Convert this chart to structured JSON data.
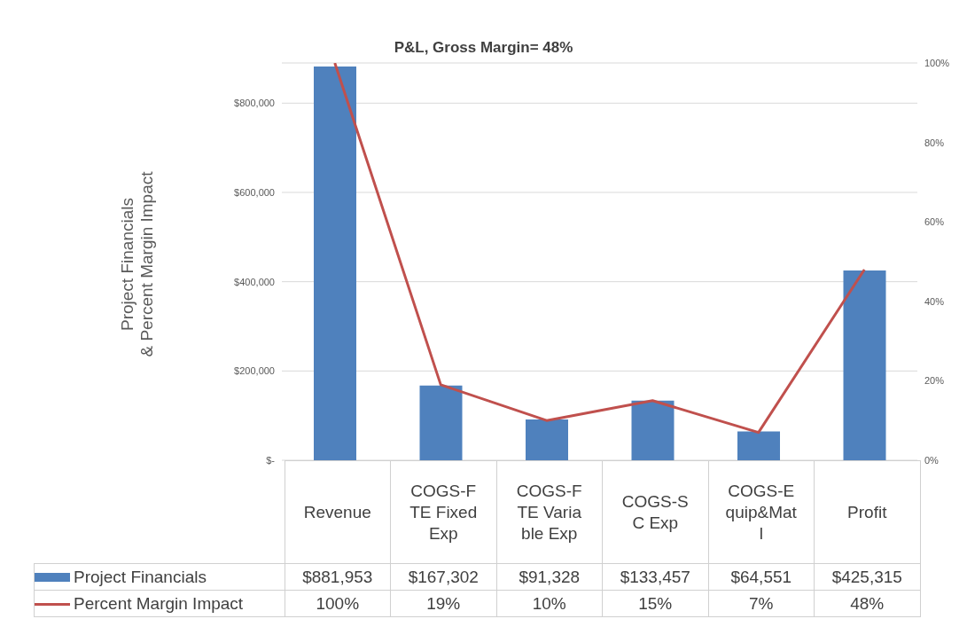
{
  "chart_data": {
    "type": "bar",
    "title": "P&L, Gross Margin= 48%",
    "ylabel": "Project Financials\n& Percent Margin Impact",
    "categories": [
      "Revenue",
      "COGS-FTE Fixed Exp",
      "COGS-FTE Variable Exp",
      "COGS-SC Exp",
      "COGS-Equip&Matl",
      "Profit"
    ],
    "series": [
      {
        "name": "Project Financials",
        "color": "#4f81bd",
        "values": [
          881953,
          167302,
          91328,
          133457,
          64551,
          425315
        ],
        "value_labels": [
          "$881,953",
          "$167,302",
          "$91,328",
          "$133,457",
          "$64,551",
          "$425,315"
        ]
      },
      {
        "name": "Percent Margin Impact",
        "type": "line",
        "axis": "y2",
        "color": "#c0504d",
        "values": [
          100,
          19,
          10,
          15,
          7,
          48
        ],
        "value_labels": [
          "100%",
          "19%",
          "10%",
          "15%",
          "7%",
          "48%"
        ]
      }
    ],
    "ylim": [
      0,
      890000
    ],
    "yticks": [
      {
        "value": 0,
        "label": "$-"
      },
      {
        "value": 200000,
        "label": "$200,000"
      },
      {
        "value": 400000,
        "label": "$400,000"
      },
      {
        "value": 600000,
        "label": "$600,000"
      },
      {
        "value": 800000,
        "label": "$800,000"
      }
    ],
    "y2lim": [
      0,
      100
    ],
    "y2ticks": [
      {
        "value": 0,
        "label": "0%"
      },
      {
        "value": 20,
        "label": "20%"
      },
      {
        "value": 40,
        "label": "40%"
      },
      {
        "value": 60,
        "label": "60%"
      },
      {
        "value": 80,
        "label": "80%"
      },
      {
        "value": 100,
        "label": "100%"
      }
    ],
    "grid": "y",
    "legend": "bottom",
    "marker": "none",
    "line_style": "solid"
  }
}
